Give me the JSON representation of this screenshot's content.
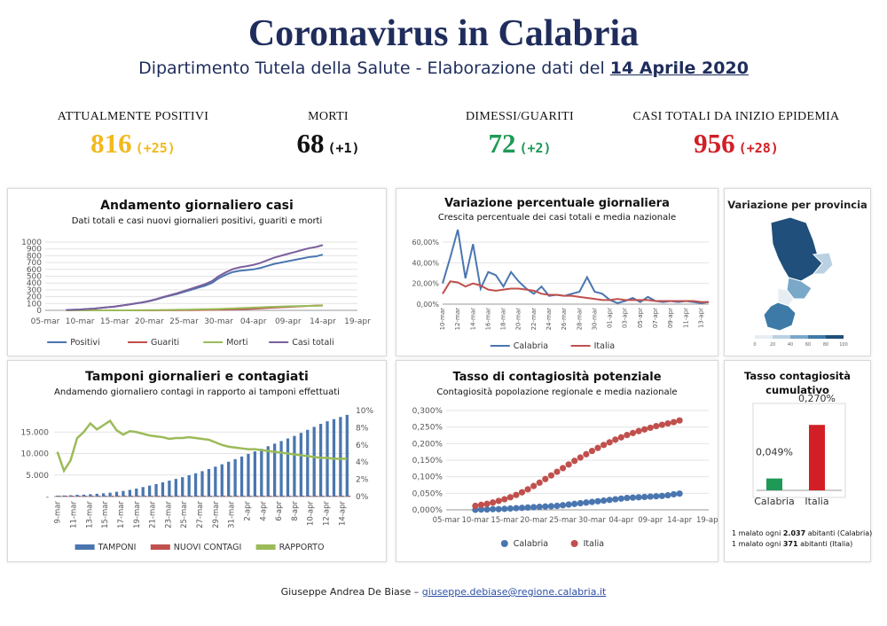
{
  "header": {
    "title": "Coronavirus in Calabria",
    "subtitle_prefix": "Dipartimento Tutela della Salute - Elaborazione dati del",
    "subtitle_date": "14 Aprile 2020"
  },
  "kpis": [
    {
      "label": "ATTUALMENTE POSITIVI",
      "value": "816",
      "delta": "(+25)",
      "color": "#f2b91d"
    },
    {
      "label": "MORTI",
      "value": "68",
      "delta": "(+1)",
      "color": "#111111"
    },
    {
      "label": "DIMESSI/GUARITI",
      "value": "72",
      "delta": "(+2)",
      "color": "#1e9a56"
    },
    {
      "label": "CASI TOTALI DA INIZIO EPIDEMIA",
      "value": "956",
      "delta": "(+28)",
      "color": "#d21f26"
    }
  ],
  "footer": {
    "author": "Giuseppe Andrea De Biase –",
    "email": "giuseppe.debiase@regione.calabria.it"
  },
  "cumulative_notes": {
    "calabria_pre": "1 malato ogni",
    "calabria_num": "2.037",
    "calabria_post": "abitanti (Calabria)",
    "italia_pre": "1 malato ogni",
    "italia_num": "371",
    "italia_post": "abitanti (Italia)"
  },
  "chart_data": [
    {
      "type": "line",
      "title": "Andamento giornaliero casi",
      "subtitle": "Dati totali e casi nuovi giornalieri positivi, guariti e morti",
      "x_tick_labels": [
        "05-mar",
        "10-mar",
        "15-mar",
        "20-mar",
        "25-mar",
        "30-mar",
        "04-apr",
        "09-apr",
        "14-apr",
        "19-apr"
      ],
      "x_range": [
        0,
        45
      ],
      "ylim": [
        0,
        1000
      ],
      "y_ticks": [
        0,
        100,
        200,
        300,
        400,
        500,
        600,
        700,
        800,
        900,
        1000
      ],
      "x_day_index": [
        3,
        4,
        5,
        6,
        7,
        8,
        9,
        10,
        11,
        12,
        13,
        14,
        15,
        16,
        17,
        18,
        19,
        20,
        21,
        22,
        23,
        24,
        25,
        26,
        27,
        28,
        29,
        30,
        31,
        32,
        33,
        34,
        35,
        36,
        37,
        38,
        39,
        40
      ],
      "series": [
        {
          "name": "Positivi",
          "color": "#4a76b0",
          "values": [
            5,
            8,
            12,
            20,
            25,
            35,
            45,
            55,
            70,
            85,
            100,
            115,
            135,
            160,
            190,
            215,
            240,
            270,
            300,
            330,
            360,
            400,
            470,
            520,
            560,
            580,
            590,
            600,
            620,
            650,
            680,
            700,
            720,
            740,
            760,
            780,
            790,
            816
          ]
        },
        {
          "name": "Guariti",
          "color": "#c0504d",
          "values": [
            0,
            0,
            0,
            0,
            0,
            0,
            0,
            0,
            0,
            0,
            0,
            0,
            0,
            0,
            1,
            2,
            2,
            3,
            4,
            5,
            6,
            8,
            10,
            12,
            15,
            18,
            20,
            25,
            30,
            35,
            40,
            45,
            50,
            55,
            60,
            65,
            70,
            72
          ]
        },
        {
          "name": "Morti",
          "color": "#9bbb59",
          "values": [
            0,
            0,
            0,
            0,
            0,
            0,
            0,
            0,
            0,
            0,
            1,
            2,
            3,
            4,
            5,
            6,
            8,
            10,
            12,
            14,
            16,
            18,
            20,
            24,
            28,
            32,
            36,
            40,
            44,
            48,
            52,
            55,
            58,
            60,
            63,
            65,
            67,
            68
          ]
        },
        {
          "name": "Casi totali",
          "color": "#7b5f9e",
          "values": [
            5,
            8,
            12,
            20,
            25,
            35,
            45,
            55,
            70,
            85,
            101,
            117,
            138,
            164,
            196,
            223,
            250,
            283,
            316,
            349,
            382,
            426,
            500,
            556,
            603,
            630,
            646,
            665,
            694,
            733,
            772,
            800,
            828,
            855,
            883,
            910,
            927,
            956
          ]
        }
      ],
      "legend": "bottom",
      "grid": true
    },
    {
      "type": "line",
      "title": "Variazione percentuale giornaliera",
      "subtitle": "Crescita percentuale dei casi totali e media nazionale",
      "categories": [
        "10-mar",
        "11-mar",
        "12-mar",
        "13-mar",
        "14-mar",
        "15-mar",
        "16-mar",
        "17-mar",
        "18-mar",
        "19-mar",
        "20-mar",
        "21-mar",
        "22-mar",
        "23-mar",
        "24-mar",
        "25-mar",
        "26-mar",
        "27-mar",
        "28-mar",
        "29-mar",
        "30-mar",
        "31-mar",
        "01-apr",
        "02-apr",
        "03-apr",
        "04-apr",
        "05-apr",
        "06-apr",
        "07-apr",
        "08-apr",
        "09-apr",
        "10-apr",
        "11-apr",
        "12-apr",
        "13-apr",
        "14-apr"
      ],
      "tick_labels": [
        "10-mar",
        "12-mar",
        "14-mar",
        "16-mar",
        "18-mar",
        "20-mar",
        "22-mar",
        "24-mar",
        "26-mar",
        "28-mar",
        "30-mar",
        "01-apr",
        "03-apr",
        "05-apr",
        "07-apr",
        "09-apr",
        "11-apr",
        "13-apr"
      ],
      "ylim": [
        0,
        0.6
      ],
      "y_ticks": [
        "0,00%",
        "20,00%",
        "40,00%",
        "60,00%"
      ],
      "series": [
        {
          "name": "Calabria",
          "color": "#4a76b0",
          "values": [
            0.2,
            0.45,
            0.72,
            0.25,
            0.58,
            0.15,
            0.31,
            0.28,
            0.17,
            0.31,
            0.22,
            0.15,
            0.1,
            0.17,
            0.08,
            0.09,
            0.08,
            0.1,
            0.12,
            0.26,
            0.12,
            0.1,
            0.04,
            0.01,
            0.03,
            0.06,
            0.02,
            0.07,
            0.03,
            0.02,
            0.03,
            0.02,
            0.03,
            0.02,
            0.01,
            0.02
          ]
        },
        {
          "name": "Italia",
          "color": "#c0504d",
          "values": [
            0.1,
            0.22,
            0.21,
            0.17,
            0.2,
            0.18,
            0.14,
            0.13,
            0.14,
            0.15,
            0.15,
            0.14,
            0.13,
            0.1,
            0.09,
            0.09,
            0.08,
            0.08,
            0.07,
            0.06,
            0.05,
            0.04,
            0.04,
            0.05,
            0.04,
            0.04,
            0.04,
            0.04,
            0.03,
            0.03,
            0.03,
            0.03,
            0.03,
            0.03,
            0.02,
            0.02
          ]
        }
      ],
      "legend": "bottom",
      "grid": true
    },
    {
      "type": "heatmap",
      "title": "Variazione per provincia",
      "scale_ticks": [
        "0",
        "20",
        "40",
        "60",
        "80",
        "100"
      ],
      "colors": [
        "#e6eef4",
        "#b9d1e2",
        "#7aa8c8",
        "#3d7aa8",
        "#1f4f7a"
      ]
    },
    {
      "type": "bar",
      "title": "Tamponi giornalieri e contagiati",
      "subtitle": "Andamendo giornaliero contagi in rapporto ai tamponi effettuati",
      "tick_labels": [
        "9-mar",
        "11-mar",
        "13-mar",
        "15-mar",
        "17-mar",
        "19-mar",
        "21-mar",
        "23-mar",
        "25-mar",
        "27-mar",
        "29-mar",
        "31-mar",
        "2-apr",
        "4-apr",
        "6-apr",
        "8-apr",
        "10-apr",
        "12-apr",
        "14-apr"
      ],
      "left_ylim": [
        0,
        20000
      ],
      "left_ticks": [
        "-",
        "5.000",
        "10.000",
        "15.000"
      ],
      "right_ylim": [
        0,
        0.1
      ],
      "right_ticks": [
        "0%",
        "2%",
        "4%",
        "6%",
        "8%",
        "10%"
      ],
      "series": [
        {
          "name": "TAMPONI",
          "axis": "left",
          "type": "bar",
          "color": "#4a76b0",
          "values": [
            200,
            250,
            300,
            400,
            450,
            550,
            650,
            750,
            900,
            1100,
            1300,
            1550,
            1850,
            2200,
            2550,
            2900,
            3300,
            3700,
            4100,
            4500,
            4950,
            5400,
            5900,
            6400,
            6950,
            7500,
            8100,
            8700,
            9300,
            9900,
            10500,
            11100,
            11700,
            12300,
            12900,
            13500,
            14100,
            14800,
            15500,
            16200,
            16900,
            17500,
            18000,
            18500,
            19000
          ]
        },
        {
          "name": "NUOVI CONTAGI",
          "axis": "left",
          "type": "bar",
          "color": "#c0504d",
          "values": [
            5,
            8,
            10,
            12,
            15,
            18,
            20,
            22,
            25,
            30,
            35,
            30,
            32,
            35,
            33,
            30,
            28,
            30,
            35,
            32,
            30,
            33,
            45,
            40,
            38,
            25,
            20,
            25,
            30,
            35,
            30,
            25,
            20,
            25,
            28,
            22,
            18,
            25,
            20,
            22,
            18,
            20,
            22,
            25,
            28
          ]
        },
        {
          "name": "RAPPORTO",
          "axis": "right",
          "type": "line",
          "color": "#9bbb59",
          "values": [
            0.052,
            0.03,
            0.042,
            0.068,
            0.075,
            0.085,
            0.078,
            0.083,
            0.088,
            0.077,
            0.072,
            0.076,
            0.075,
            0.073,
            0.071,
            0.07,
            0.069,
            0.067,
            0.068,
            0.068,
            0.069,
            0.068,
            0.067,
            0.066,
            0.063,
            0.06,
            0.058,
            0.057,
            0.056,
            0.055,
            0.055,
            0.054,
            0.053,
            0.052,
            0.051,
            0.05,
            0.049,
            0.048,
            0.047,
            0.046,
            0.045,
            0.045,
            0.044,
            0.044,
            0.044
          ]
        }
      ],
      "legend": "bottom",
      "grid": true
    },
    {
      "type": "scatter",
      "title": "Tasso di contagiosità potenziale",
      "subtitle": "Contagiosità popolazione regionale e media nazionale",
      "x_tick_labels": [
        "05-mar",
        "10-mar",
        "15-mar",
        "20-mar",
        "25-mar",
        "30-mar",
        "04-apr",
        "09-apr",
        "14-apr",
        "19-apr"
      ],
      "x_range": [
        0,
        45
      ],
      "ylim": [
        0,
        0.003
      ],
      "y_ticks": [
        "0,000%",
        "0,050%",
        "0,100%",
        "0,150%",
        "0,200%",
        "0,250%",
        "0,300%"
      ],
      "x_day_index": [
        5,
        6,
        7,
        8,
        9,
        10,
        11,
        12,
        13,
        14,
        15,
        16,
        17,
        18,
        19,
        20,
        21,
        22,
        23,
        24,
        25,
        26,
        27,
        28,
        29,
        30,
        31,
        32,
        33,
        34,
        35,
        36,
        37,
        38,
        39,
        40
      ],
      "series": [
        {
          "name": "Calabria",
          "color": "#4a76b0",
          "values": [
            0.0,
            1e-05,
            1e-05,
            2e-05,
            2e-05,
            3e-05,
            4e-05,
            5e-05,
            6e-05,
            7e-05,
            8e-05,
            9e-05,
            0.0001,
            0.00011,
            0.00012,
            0.00014,
            0.00016,
            0.00018,
            0.0002,
            0.00022,
            0.00024,
            0.00026,
            0.00028,
            0.0003,
            0.00032,
            0.00034,
            0.00036,
            0.00037,
            0.00038,
            0.00039,
            0.0004,
            0.00041,
            0.00042,
            0.00044,
            0.00047,
            0.00049
          ]
        },
        {
          "name": "Italia",
          "color": "#c0504d",
          "values": [
            0.00012,
            0.00015,
            0.00018,
            0.00022,
            0.00027,
            0.00032,
            0.00038,
            0.00045,
            0.00053,
            0.00062,
            0.00072,
            0.00082,
            0.00093,
            0.00104,
            0.00115,
            0.00126,
            0.00137,
            0.00148,
            0.00158,
            0.00168,
            0.00178,
            0.00187,
            0.00196,
            0.00204,
            0.00212,
            0.00219,
            0.00226,
            0.00232,
            0.00238,
            0.00243,
            0.00248,
            0.00253,
            0.00257,
            0.00261,
            0.00265,
            0.0027
          ]
        }
      ],
      "legend": "bottom",
      "grid": true
    },
    {
      "type": "bar",
      "title": "Tasso contagiosità cumulativo",
      "categories": [
        "Calabria",
        "Italia"
      ],
      "values": [
        0.00049,
        0.0027
      ],
      "value_labels": [
        "0,049%",
        "0,270%"
      ],
      "colors": [
        "#1e9a56",
        "#d21f26"
      ]
    }
  ]
}
